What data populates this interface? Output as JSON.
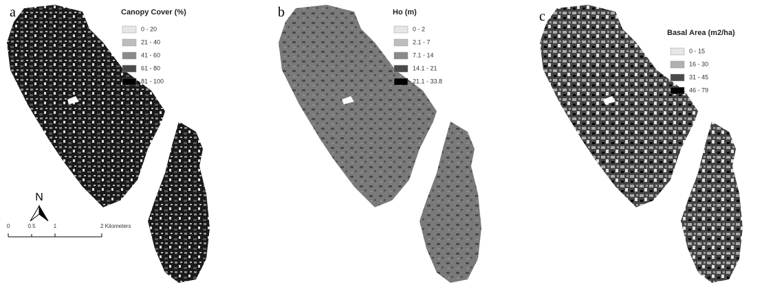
{
  "panels": [
    {
      "letter": "a",
      "legend": {
        "title": "Canopy Cover (%)",
        "items": [
          {
            "label": "0 - 20",
            "color": "#e6e6e6"
          },
          {
            "label": "21 - 40",
            "color": "#bdbdbd"
          },
          {
            "label": "41 - 60",
            "color": "#8a8a8a"
          },
          {
            "label": "61 - 80",
            "color": "#4a4a4a"
          },
          {
            "label": "81 - 100",
            "color": "#000000"
          }
        ]
      }
    },
    {
      "letter": "b",
      "legend": {
        "title": "Ho (m)",
        "items": [
          {
            "label": "0 - 2",
            "color": "#e6e6e6"
          },
          {
            "label": "2.1 - 7",
            "color": "#bdbdbd"
          },
          {
            "label": "7.1 - 14",
            "color": "#8a8a8a"
          },
          {
            "label": "14.1 - 21",
            "color": "#4a4a4a"
          },
          {
            "label": "21.1 - 33.8",
            "color": "#000000"
          }
        ]
      }
    },
    {
      "letter": "c",
      "legend": {
        "title": "Basal Area (m2/ha)",
        "items": [
          {
            "label": "0 - 15",
            "color": "#e6e6e6"
          },
          {
            "label": "16 - 30",
            "color": "#b0b0b0"
          },
          {
            "label": "31 - 45",
            "color": "#4a4a4a"
          },
          {
            "label": "46 - 79",
            "color": "#000000"
          }
        ]
      }
    }
  ],
  "north": "N",
  "scale_bar": {
    "labels": [
      "0",
      "0.5",
      "1",
      "2 Kilometers"
    ]
  }
}
